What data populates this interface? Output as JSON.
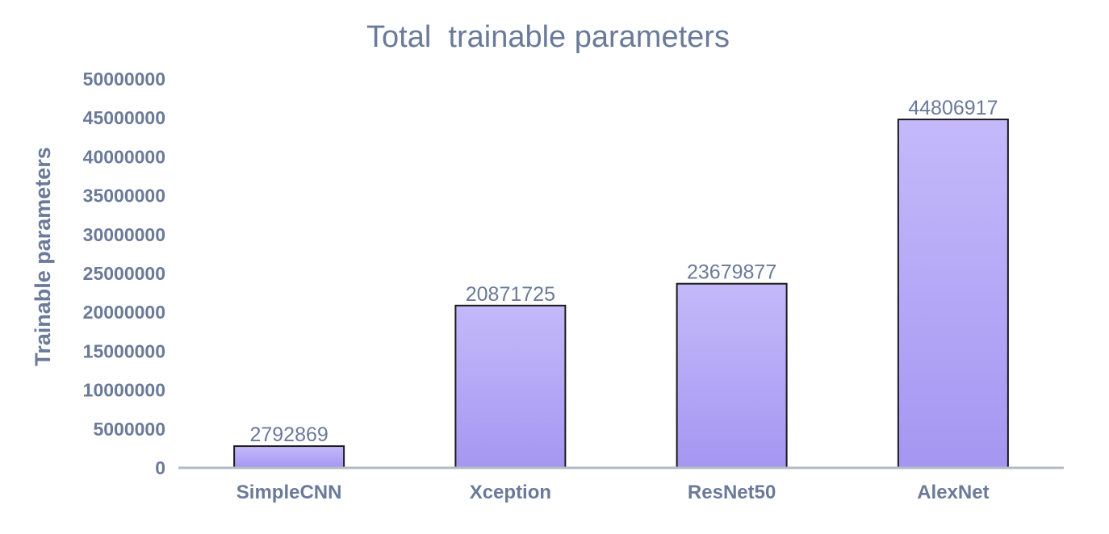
{
  "colors": {
    "text": "#6b7a99",
    "axis": "#b4bac4",
    "bar_top": "#c4b9fa",
    "bar_bottom": "#a596f2",
    "bar_border": "#1a1a1a"
  },
  "chart_data": {
    "type": "bar",
    "title": "Total  trainable parameters",
    "xlabel": "",
    "ylabel": "Trainable parameters",
    "categories": [
      "SimpleCNN",
      "Xception",
      "ResNet50",
      "AlexNet"
    ],
    "values": [
      2792869,
      20871725,
      23679877,
      44806917
    ],
    "value_labels": [
      "2792869",
      "20871725",
      "23679877",
      "44806917"
    ],
    "yticks": [
      "0",
      "5000000",
      "10000000",
      "15000000",
      "20000000",
      "25000000",
      "30000000",
      "35000000",
      "40000000",
      "45000000",
      "50000000"
    ],
    "ylim": [
      0,
      50000000
    ],
    "grid": false,
    "legend": "none"
  }
}
